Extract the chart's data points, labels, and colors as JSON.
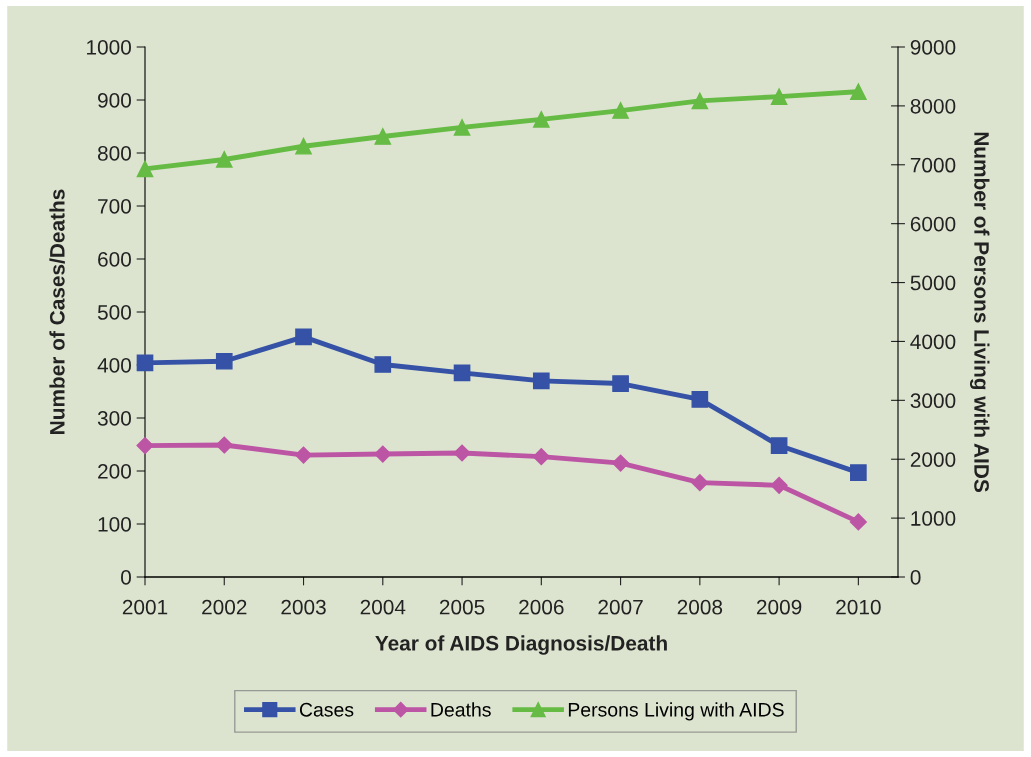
{
  "chart_data": {
    "type": "line",
    "xlabel": "Year of AIDS Diagnosis/Death",
    "ylabel": "Number of Cases/Deaths",
    "y2label": "Number of Persons Living with AIDS",
    "categories": [
      "2001",
      "2002",
      "2003",
      "2004",
      "2005",
      "2006",
      "2007",
      "2008",
      "2009",
      "2010"
    ],
    "series": [
      {
        "name": "Cases",
        "color": "#3652a6",
        "marker": "square",
        "values": [
          404,
          407,
          453,
          401,
          385,
          370,
          365,
          335,
          248,
          197
        ]
      },
      {
        "name": "Deaths",
        "color": "#bd55a5",
        "marker": "diamond",
        "values": [
          248,
          249,
          230,
          232,
          234,
          227,
          215,
          178,
          173,
          104
        ]
      },
      {
        "name": "Persons Living with AIDS",
        "color": "#66bb44",
        "marker": "triangle",
        "axis": "y2",
        "values": [
          6930,
          7090,
          7315,
          7480,
          7636,
          7770,
          7921,
          8085,
          8158,
          8242
        ]
      }
    ],
    "ylim": [
      0,
      1000
    ],
    "yticks": [
      0,
      100,
      200,
      300,
      400,
      500,
      600,
      700,
      800,
      900,
      1000
    ],
    "y2lim": [
      0,
      9000
    ],
    "y2ticks": [
      0,
      1000,
      2000,
      3000,
      4000,
      5000,
      6000,
      7000,
      8000,
      9000
    ],
    "grid": false,
    "legend": "bottom",
    "line_style": "solid"
  }
}
